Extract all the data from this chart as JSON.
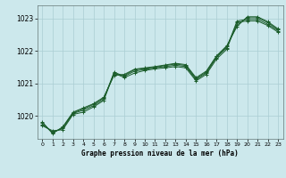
{
  "xlabel": "Graphe pression niveau de la mer (hPa)",
  "bg_color": "#cce8ec",
  "grid_color": "#aacdd3",
  "line_color": "#1a5c2a",
  "ylim": [
    1019.3,
    1023.4
  ],
  "xlim": [
    -0.5,
    23.5
  ],
  "yticks": [
    1020,
    1021,
    1022,
    1023
  ],
  "ytick_labels": [
    "1020",
    "1021",
    "1022",
    ""
  ],
  "xticks": [
    0,
    1,
    2,
    3,
    4,
    5,
    6,
    7,
    8,
    9,
    10,
    11,
    12,
    13,
    14,
    15,
    16,
    17,
    18,
    19,
    20,
    21,
    22,
    23
  ],
  "series": [
    [
      1019.7,
      1019.55,
      1019.58,
      1020.05,
      1020.12,
      1020.28,
      1020.48,
      1021.32,
      1021.18,
      1021.32,
      1021.4,
      1021.45,
      1021.48,
      1021.52,
      1021.48,
      1021.08,
      1021.28,
      1021.75,
      1022.05,
      1022.88,
      1022.92,
      1022.92,
      1022.78,
      1022.58
    ],
    [
      1019.75,
      1019.5,
      1019.62,
      1020.08,
      1020.18,
      1020.32,
      1020.52,
      1021.35,
      1021.22,
      1021.38,
      1021.43,
      1021.48,
      1021.52,
      1021.56,
      1021.52,
      1021.12,
      1021.32,
      1021.8,
      1022.1,
      1022.92,
      1022.97,
      1022.97,
      1022.82,
      1022.62
    ],
    [
      1019.8,
      1019.48,
      1019.65,
      1020.1,
      1020.22,
      1020.36,
      1020.56,
      1021.28,
      1021.25,
      1021.42,
      1021.46,
      1021.5,
      1021.55,
      1021.6,
      1021.55,
      1021.15,
      1021.35,
      1021.83,
      1022.13,
      1022.8,
      1023.02,
      1023.02,
      1022.87,
      1022.65
    ],
    [
      1019.82,
      1019.46,
      1019.67,
      1020.12,
      1020.25,
      1020.38,
      1020.58,
      1021.25,
      1021.28,
      1021.44,
      1021.48,
      1021.52,
      1021.57,
      1021.62,
      1021.58,
      1021.18,
      1021.38,
      1021.85,
      1022.16,
      1022.75,
      1023.05,
      1023.05,
      1022.9,
      1022.68
    ]
  ]
}
